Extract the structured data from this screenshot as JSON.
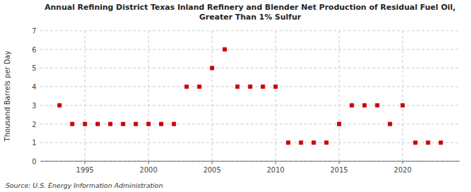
{
  "chart_data": {
    "type": "scatter",
    "title": "Annual Refining District Texas Inland Refinery and Blender Net Production of Residual Fuel Oil,\nGreater Than 1% Sulfur",
    "ylabel": "Thousand Barrels per Day",
    "source": "Source: U.S. Energy Information Administration",
    "x": [
      1993,
      1994,
      1995,
      1996,
      1997,
      1998,
      1999,
      2000,
      2001,
      2002,
      2003,
      2004,
      2005,
      2006,
      2007,
      2008,
      2009,
      2010,
      2011,
      2012,
      2013,
      2014,
      2015,
      2016,
      2017,
      2018,
      2019,
      2020,
      2021,
      2022,
      2023
    ],
    "values": [
      3,
      2,
      2,
      2,
      2,
      2,
      2,
      2,
      2,
      2,
      4,
      4,
      5,
      6,
      4,
      4,
      4,
      4,
      1,
      1,
      1,
      1,
      2,
      3,
      3,
      3,
      2,
      3,
      1,
      1,
      1
    ],
    "color": "#cc0000",
    "marker": "square",
    "xlim": [
      1991.5,
      2024.5
    ],
    "xticks": [
      1995,
      2000,
      2005,
      2010,
      2015,
      2020
    ],
    "ylim": [
      0,
      7
    ],
    "yticks": [
      0,
      1,
      2,
      3,
      4,
      5,
      6,
      7
    ],
    "grid": true
  }
}
